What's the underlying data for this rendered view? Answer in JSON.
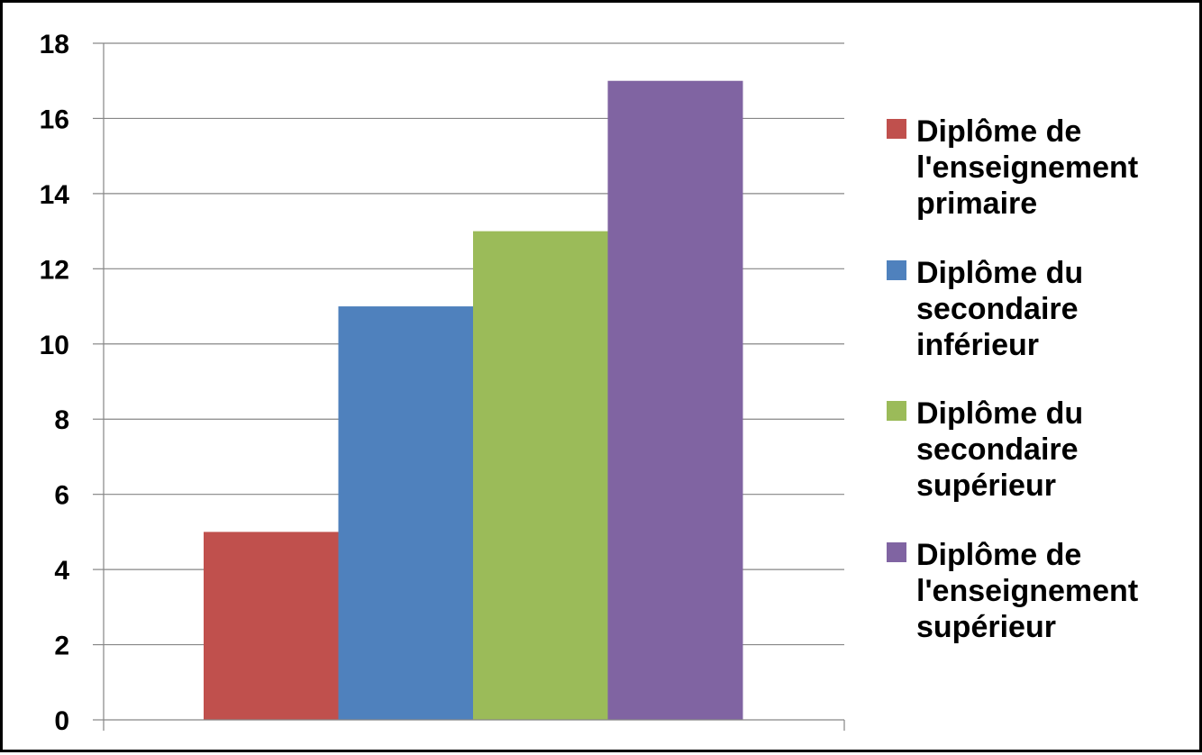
{
  "chart_data": {
    "type": "bar",
    "title": "",
    "xlabel": "",
    "ylabel": "",
    "ylim": [
      0,
      18
    ],
    "ytick_step": 2,
    "ytick_labels": [
      "0",
      "2",
      "4",
      "6",
      "8",
      "10",
      "12",
      "14",
      "16",
      "18"
    ],
    "grid": true,
    "legend_position": "right",
    "categories": [
      ""
    ],
    "series": [
      {
        "name": "Diplôme de l'enseignement primaire",
        "legend_lines": [
          "Diplôme de",
          "l'enseignement",
          "primaire"
        ],
        "values": [
          5
        ],
        "color": "#C0504D"
      },
      {
        "name": "Diplôme du secondaire inférieur",
        "legend_lines": [
          "Diplôme du",
          "secondaire",
          "inférieur"
        ],
        "values": [
          11
        ],
        "color": "#4F81BD"
      },
      {
        "name": "Diplôme du secondaire supérieur",
        "legend_lines": [
          "Diplôme du",
          "secondaire",
          "supérieur"
        ],
        "values": [
          13
        ],
        "color": "#9BBB59"
      },
      {
        "name": "Diplôme de l'enseignement supérieur",
        "legend_lines": [
          "Diplôme de",
          "l'enseignement",
          "supérieur"
        ],
        "values": [
          17
        ],
        "color": "#8064A2"
      }
    ],
    "gridline_color": "#868686",
    "axis_color": "#868686"
  }
}
